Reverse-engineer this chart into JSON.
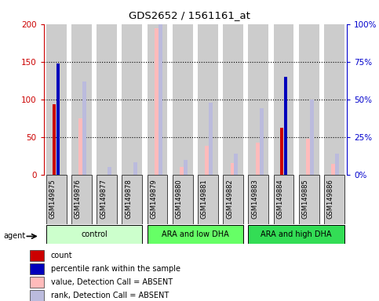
{
  "title": "GDS2652 / 1561161_at",
  "samples": [
    "GSM149875",
    "GSM149876",
    "GSM149877",
    "GSM149878",
    "GSM149879",
    "GSM149880",
    "GSM149881",
    "GSM149882",
    "GSM149883",
    "GSM149884",
    "GSM149885",
    "GSM149886"
  ],
  "groups": [
    {
      "label": "control",
      "color": "#ccffcc",
      "start": 0,
      "end": 3
    },
    {
      "label": "ARA and low DHA",
      "color": "#66ff66",
      "start": 4,
      "end": 7
    },
    {
      "label": "ARA and high DHA",
      "color": "#33dd55",
      "start": 8,
      "end": 11
    }
  ],
  "count_values": [
    93,
    0,
    0,
    0,
    0,
    0,
    0,
    0,
    0,
    62,
    0,
    0
  ],
  "rank_values": [
    74,
    0,
    0,
    0,
    0,
    0,
    0,
    0,
    0,
    65,
    0,
    0
  ],
  "value_absent": [
    0,
    75,
    0,
    0,
    195,
    10,
    38,
    15,
    42,
    0,
    48,
    14
  ],
  "rank_absent_pct": [
    0,
    62,
    5,
    8,
    110,
    10,
    48,
    14,
    44,
    0,
    50,
    14
  ],
  "ylim_left": [
    0,
    200
  ],
  "ylim_right": [
    0,
    100
  ],
  "yticks_left": [
    0,
    50,
    100,
    150,
    200
  ],
  "yticks_right": [
    0,
    25,
    50,
    75,
    100
  ],
  "ytick_labels_left": [
    "0",
    "50",
    "100",
    "150",
    "200"
  ],
  "ytick_labels_right": [
    "0%",
    "25%",
    "50%",
    "75%",
    "100%"
  ],
  "left_axis_color": "#cc0000",
  "right_axis_color": "#0000cc",
  "col_bg_color": "#cccccc",
  "legend_items": [
    {
      "color": "#cc0000",
      "label": "count"
    },
    {
      "color": "#0000bb",
      "label": "percentile rank within the sample"
    },
    {
      "color": "#ffbbbb",
      "label": "value, Detection Call = ABSENT"
    },
    {
      "color": "#bbbbdd",
      "label": "rank, Detection Call = ABSENT"
    }
  ]
}
